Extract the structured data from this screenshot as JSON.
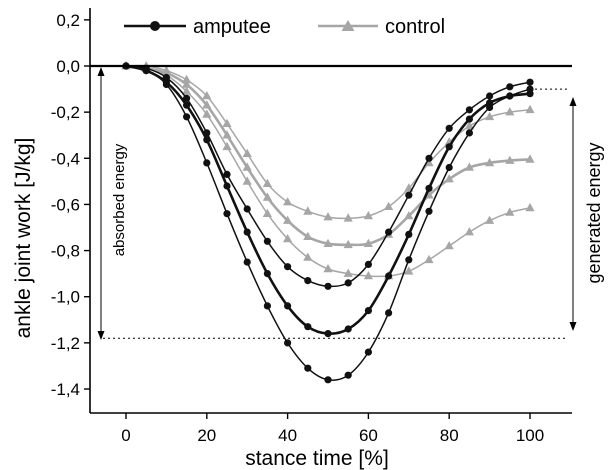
{
  "chart_data": {
    "type": "line",
    "xlabel": "stance time [%]",
    "ylabel": "ankle joint work [J/kg]",
    "xlim": [
      -6,
      108
    ],
    "ylim": [
      -1.5,
      0.2
    ],
    "xticks": [
      0,
      20,
      40,
      60,
      80,
      100
    ],
    "yticks": [
      0.2,
      0.0,
      -0.2,
      -0.4,
      -0.6,
      -0.8,
      -1.0,
      -1.2,
      -1.4
    ],
    "xtick_labels": [
      "0",
      "20",
      "40",
      "60",
      "80",
      "100"
    ],
    "ytick_labels": [
      "0,2",
      "0,0",
      "-0,2",
      "-0,4",
      "-0,6",
      "-0,8",
      "-1,0",
      "-1,2",
      "-1,4"
    ],
    "legend": [
      {
        "label": "amputee",
        "color": "#111111",
        "marker": "circle"
      },
      {
        "label": "control",
        "color": "#a6a6a6",
        "marker": "triangle"
      }
    ],
    "legend_position": "top-left",
    "annotations": {
      "absorbed": "absorbed energy",
      "generated": "generated energy"
    },
    "reference_lines": {
      "upper": -0.1,
      "lower": -1.18
    },
    "series": [
      {
        "group": "amputee",
        "line_width": 2.6,
        "color": "#111111",
        "marker": "circle",
        "x": [
          0,
          5,
          10,
          15,
          20,
          25,
          30,
          35,
          40,
          45,
          50,
          55,
          60,
          65,
          70,
          75,
          80,
          85,
          90,
          95,
          100
        ],
        "y": [
          0,
          -0.02,
          -0.07,
          -0.17,
          -0.32,
          -0.52,
          -0.72,
          -0.9,
          -1.04,
          -1.13,
          -1.16,
          -1.14,
          -1.06,
          -0.91,
          -0.73,
          -0.53,
          -0.35,
          -0.23,
          -0.16,
          -0.13,
          -0.12
        ]
      },
      {
        "group": "amputee",
        "line_width": 1.5,
        "color": "#111111",
        "marker": "circle",
        "x": [
          0,
          5,
          10,
          15,
          20,
          25,
          30,
          35,
          40,
          45,
          50,
          55,
          60,
          65,
          70,
          75,
          80,
          85,
          90,
          95,
          100
        ],
        "y": [
          0,
          -0.01,
          -0.05,
          -0.14,
          -0.29,
          -0.47,
          -0.62,
          -0.76,
          -0.87,
          -0.93,
          -0.955,
          -0.94,
          -0.86,
          -0.72,
          -0.56,
          -0.4,
          -0.27,
          -0.19,
          -0.13,
          -0.09,
          -0.07
        ]
      },
      {
        "group": "amputee",
        "line_width": 1.5,
        "color": "#111111",
        "marker": "circle",
        "x": [
          0,
          5,
          10,
          15,
          20,
          25,
          30,
          35,
          40,
          45,
          50,
          55,
          60,
          65,
          70,
          75,
          80,
          85,
          90,
          95,
          100
        ],
        "y": [
          0,
          -0.02,
          -0.08,
          -0.22,
          -0.42,
          -0.64,
          -0.85,
          -1.04,
          -1.2,
          -1.31,
          -1.36,
          -1.34,
          -1.24,
          -1.07,
          -0.84,
          -0.63,
          -0.44,
          -0.29,
          -0.18,
          -0.13,
          -0.1
        ]
      },
      {
        "group": "control",
        "line_width": 2.6,
        "color": "#a6a6a6",
        "marker": "triangle",
        "x": [
          0,
          5,
          10,
          15,
          20,
          25,
          30,
          35,
          40,
          45,
          50,
          55,
          60,
          65,
          70,
          75,
          80,
          85,
          90,
          95,
          100
        ],
        "y": [
          0,
          -0.01,
          -0.03,
          -0.08,
          -0.17,
          -0.3,
          -0.44,
          -0.57,
          -0.67,
          -0.74,
          -0.77,
          -0.775,
          -0.77,
          -0.73,
          -0.65,
          -0.56,
          -0.49,
          -0.44,
          -0.42,
          -0.41,
          -0.405
        ]
      },
      {
        "group": "control",
        "line_width": 1.5,
        "color": "#a6a6a6",
        "marker": "triangle",
        "x": [
          0,
          5,
          10,
          15,
          20,
          25,
          30,
          35,
          40,
          45,
          50,
          55,
          60,
          65,
          70,
          75,
          80,
          85,
          90,
          95,
          100
        ],
        "y": [
          0,
          0.0,
          -0.02,
          -0.06,
          -0.13,
          -0.25,
          -0.38,
          -0.51,
          -0.59,
          -0.63,
          -0.655,
          -0.66,
          -0.65,
          -0.61,
          -0.53,
          -0.42,
          -0.33,
          -0.26,
          -0.22,
          -0.2,
          -0.19
        ]
      },
      {
        "group": "control",
        "line_width": 1.5,
        "color": "#a6a6a6",
        "marker": "triangle",
        "x": [
          0,
          5,
          10,
          15,
          20,
          25,
          30,
          35,
          40,
          45,
          50,
          55,
          60,
          65,
          70,
          75,
          80,
          85,
          90,
          95,
          100
        ],
        "y": [
          0,
          -0.01,
          -0.04,
          -0.11,
          -0.21,
          -0.35,
          -0.5,
          -0.64,
          -0.75,
          -0.83,
          -0.88,
          -0.9,
          -0.91,
          -0.91,
          -0.89,
          -0.84,
          -0.78,
          -0.72,
          -0.67,
          -0.635,
          -0.615
        ]
      }
    ]
  }
}
